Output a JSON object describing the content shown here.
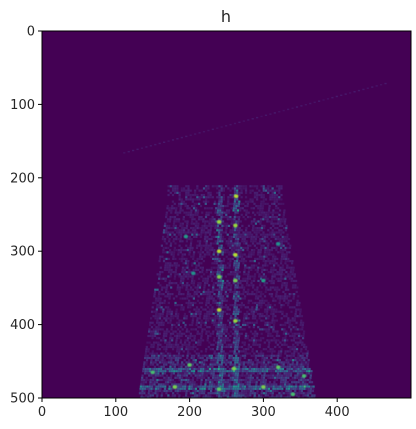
{
  "chart_data": {
    "type": "heatmap",
    "title": "h",
    "xlabel": "",
    "ylabel": "",
    "width": 500,
    "height": 500,
    "xlim": [
      0,
      500
    ],
    "ylim": [
      500,
      0
    ],
    "xticks": [
      0,
      100,
      200,
      300,
      400
    ],
    "yticks": [
      0,
      100,
      200,
      300,
      400,
      500
    ],
    "xtick_labels": [
      "0",
      "100",
      "200",
      "300",
      "400"
    ],
    "ytick_labels": [
      "0",
      "100",
      "200",
      "300",
      "400",
      "500"
    ],
    "grid": false,
    "colormap": "viridis",
    "background_color": "#440154",
    "region": {
      "description_free": true,
      "top_y": 230,
      "top_x": [
        170,
        325
      ],
      "bottom_y": 500,
      "bottom_x": [
        130,
        370
      ]
    },
    "hot_spots": [
      {
        "x": 240,
        "y": 260,
        "v": 0.85
      },
      {
        "x": 240,
        "y": 300,
        "v": 0.9
      },
      {
        "x": 240,
        "y": 335,
        "v": 0.8
      },
      {
        "x": 240,
        "y": 380,
        "v": 0.9
      },
      {
        "x": 262,
        "y": 265,
        "v": 0.85
      },
      {
        "x": 262,
        "y": 305,
        "v": 0.9
      },
      {
        "x": 262,
        "y": 340,
        "v": 0.8
      },
      {
        "x": 262,
        "y": 395,
        "v": 0.85
      },
      {
        "x": 263,
        "y": 225,
        "v": 0.9
      },
      {
        "x": 195,
        "y": 280,
        "v": 0.55
      },
      {
        "x": 320,
        "y": 290,
        "v": 0.5
      },
      {
        "x": 205,
        "y": 330,
        "v": 0.5
      },
      {
        "x": 300,
        "y": 340,
        "v": 0.55
      },
      {
        "x": 150,
        "y": 465,
        "v": 0.7
      },
      {
        "x": 200,
        "y": 455,
        "v": 0.75
      },
      {
        "x": 260,
        "y": 460,
        "v": 0.8
      },
      {
        "x": 320,
        "y": 458,
        "v": 0.75
      },
      {
        "x": 355,
        "y": 470,
        "v": 0.7
      },
      {
        "x": 180,
        "y": 485,
        "v": 0.8
      },
      {
        "x": 240,
        "y": 488,
        "v": 0.75
      },
      {
        "x": 300,
        "y": 485,
        "v": 0.8
      },
      {
        "x": 340,
        "y": 495,
        "v": 0.7
      }
    ]
  }
}
